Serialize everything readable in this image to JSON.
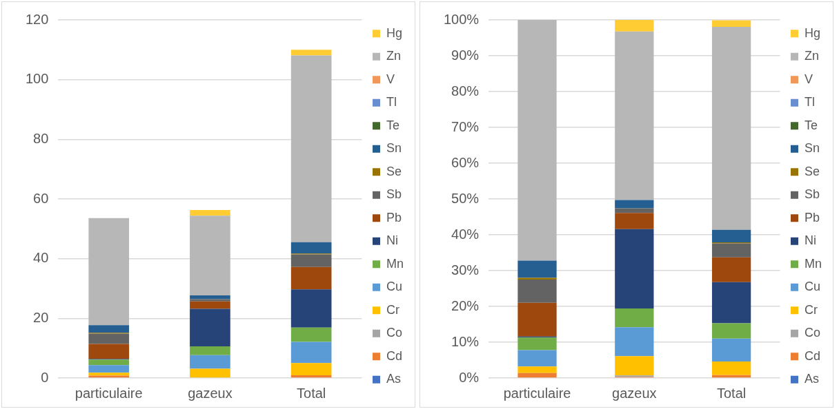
{
  "chart_data": [
    {
      "type": "bar",
      "stacked": true,
      "categories": [
        "particulaire",
        "gazeux",
        "Total"
      ],
      "series": [
        {
          "name": "As",
          "color": "#4472c4",
          "values": [
            0,
            0,
            0
          ]
        },
        {
          "name": "Cd",
          "color": "#ed7d31",
          "values": [
            0.8,
            null,
            0.9
          ]
        },
        {
          "name": "Co",
          "color": "#a5a5a5",
          "values": [
            0,
            null,
            null
          ]
        },
        {
          "name": "Cr",
          "color": "#ffc000",
          "values": [
            1.0,
            3.1,
            4.1
          ]
        },
        {
          "name": "Cu",
          "color": "#5b9bd5",
          "values": [
            2.5,
            4.6,
            7.1
          ]
        },
        {
          "name": "Mn",
          "color": "#70ad47",
          "values": [
            1.9,
            2.9,
            4.8
          ]
        },
        {
          "name": "Ni",
          "color": "#264478",
          "values": [
            0.2,
            12.6,
            12.8
          ]
        },
        {
          "name": "Pb",
          "color": "#9e480e",
          "values": [
            5.0,
            2.5,
            7.5
          ]
        },
        {
          "name": "Sb",
          "color": "#636363",
          "values": [
            3.5,
            0.7,
            4.2
          ]
        },
        {
          "name": "Se",
          "color": "#997300",
          "values": [
            0.3,
            0,
            0.3
          ]
        },
        {
          "name": "Sn",
          "color": "#255e91",
          "values": [
            2.5,
            1.3,
            3.8
          ]
        },
        {
          "name": "Te",
          "color": "#43682b",
          "values": [
            0,
            0,
            0
          ]
        },
        {
          "name": "Tl",
          "color": "#698ed0",
          "values": [
            0,
            0,
            0
          ]
        },
        {
          "name": "V",
          "color": "#f1975a",
          "values": [
            0,
            0,
            0
          ]
        },
        {
          "name": "Zn",
          "color": "#b7b7b7",
          "values": [
            35.9,
            26.7,
            62.6
          ]
        },
        {
          "name": "Hg",
          "color": "#ffcd33",
          "values": [
            0,
            1.9,
            1.9
          ]
        }
      ],
      "ylim": [
        0,
        120
      ],
      "yticks": [
        0,
        20,
        40,
        60,
        80,
        100,
        120
      ],
      "grid": "y",
      "legend": "right"
    },
    {
      "type": "bar",
      "stacked": true,
      "categories": [
        "particulaire",
        "gazeux",
        "Total"
      ],
      "series": [
        {
          "name": "As",
          "color": "#4472c4",
          "values": [
            0,
            0,
            0
          ]
        },
        {
          "name": "Cd",
          "color": "#ed7d31",
          "values": [
            1.4,
            0.3,
            0.8
          ]
        },
        {
          "name": "Co",
          "color": "#a5a5a5",
          "values": [
            0,
            0.4,
            null
          ]
        },
        {
          "name": "Cr",
          "color": "#ffc000",
          "values": [
            1.8,
            5.4,
            3.8
          ]
        },
        {
          "name": "Cu",
          "color": "#5b9bd5",
          "values": [
            4.6,
            8.1,
            6.4
          ]
        },
        {
          "name": "Mn",
          "color": "#70ad47",
          "values": [
            3.5,
            5.2,
            4.3
          ]
        },
        {
          "name": "Ni",
          "color": "#264478",
          "values": [
            0.3,
            22.2,
            11.5
          ]
        },
        {
          "name": "Pb",
          "color": "#9e480e",
          "values": [
            9.4,
            4.5,
            6.9
          ]
        },
        {
          "name": "Sb",
          "color": "#636363",
          "values": [
            6.5,
            1.3,
            3.9
          ]
        },
        {
          "name": "Se",
          "color": "#997300",
          "values": [
            0.5,
            0,
            0.3
          ]
        },
        {
          "name": "Sn",
          "color": "#255e91",
          "values": [
            4.8,
            2.3,
            3.5
          ]
        },
        {
          "name": "Te",
          "color": "#43682b",
          "values": [
            0,
            0,
            0
          ]
        },
        {
          "name": "Tl",
          "color": "#698ed0",
          "values": [
            0,
            0,
            0
          ]
        },
        {
          "name": "V",
          "color": "#f1975a",
          "values": [
            0,
            0,
            0
          ]
        },
        {
          "name": "Zn",
          "color": "#b7b7b7",
          "values": [
            67.2,
            47.1,
            56.7
          ]
        },
        {
          "name": "Hg",
          "color": "#ffcd33",
          "values": [
            0,
            3.3,
            1.8
          ]
        }
      ],
      "ylim": [
        0,
        100
      ],
      "yticks": [
        {
          "value": 0,
          "label": "0%"
        },
        {
          "value": 10,
          "label": "10%"
        },
        {
          "value": 20,
          "label": "20%"
        },
        {
          "value": 30,
          "label": "30%"
        },
        {
          "value": 40,
          "label": "40%"
        },
        {
          "value": 50,
          "label": "50%"
        },
        {
          "value": 60,
          "label": "60%"
        },
        {
          "value": 70,
          "label": "70%"
        },
        {
          "value": 80,
          "label": "80%"
        },
        {
          "value": 90,
          "label": "90%"
        },
        {
          "value": 100,
          "label": "100%"
        }
      ],
      "grid": "y",
      "legend": "right"
    }
  ]
}
